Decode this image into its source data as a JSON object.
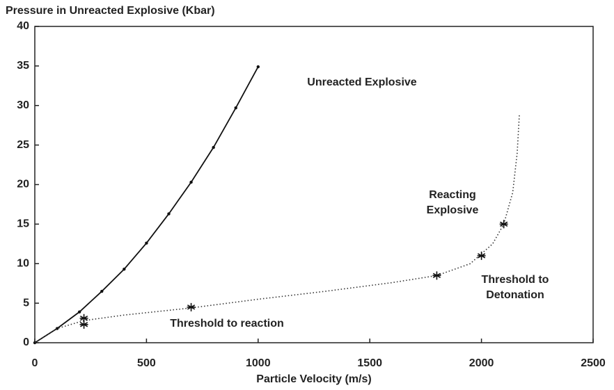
{
  "chart_data": {
    "type": "line",
    "title": "Pressure in Unreacted Explosive (Kbar)",
    "x_label": "Particle Velocity (m/s)",
    "series": [
      {
        "x": [
          0,
          100,
          200,
          300,
          400,
          500,
          600,
          700,
          800,
          900,
          1000
        ],
        "values": [
          0,
          1.8,
          3.9,
          6.5,
          9.3,
          12.6,
          16.3,
          20.3,
          24.7,
          29.7,
          34.9
        ],
        "color": "#111",
        "style": "solid",
        "marker": "dot"
      },
      {
        "x": [
          0,
          100,
          220,
          400,
          700,
          1000,
          1300,
          1600,
          1800,
          1950,
          2050,
          2100,
          2140,
          2160,
          2170
        ],
        "values": [
          0,
          1.8,
          2.8,
          3.5,
          4.4,
          5.5,
          6.5,
          7.6,
          8.5,
          10,
          12.5,
          15,
          19,
          24,
          29
        ],
        "color": "#333",
        "style": "dotted",
        "marker": "none"
      },
      {
        "x": [
          220,
          220,
          700,
          1800,
          2000,
          2100
        ],
        "values": [
          3.1,
          2.3,
          4.5,
          8.5,
          11,
          15
        ],
        "color": "#111",
        "style": "none",
        "marker": "asterisk"
      }
    ],
    "annotations": [
      "Unreacted Explosive",
      "Reacting Explosive",
      "Threshold to reaction",
      "Threshold to Detonation"
    ],
    "xlim": [
      0,
      2500
    ],
    "xticks": [
      0,
      500,
      1000,
      1500,
      2000,
      2500
    ],
    "ylim": [
      0,
      40
    ],
    "yticks": [
      0,
      5,
      10,
      15,
      20,
      25,
      30,
      35,
      40
    ],
    "grid": false
  }
}
